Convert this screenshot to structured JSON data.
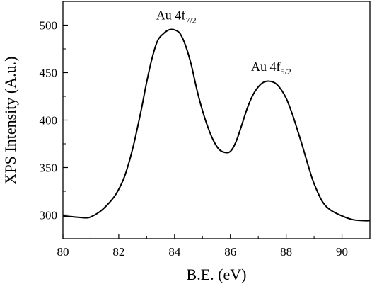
{
  "chart_data": {
    "type": "line",
    "xlabel": "B.E. (eV)",
    "ylabel": "XPS Intensity (A.u.)",
    "xlim": [
      80,
      91
    ],
    "ylim": [
      275,
      525
    ],
    "xticks": [
      "80",
      "82",
      "84",
      "86",
      "88",
      "90"
    ],
    "yticks": [
      "300",
      "350",
      "400",
      "450",
      "500"
    ],
    "grid": false,
    "legend": "none",
    "line_color": "#000000",
    "annotations": [
      {
        "main": "Au 4f",
        "sub": "7/2",
        "x": 84.0,
        "y": 506
      },
      {
        "main": "Au 4f",
        "sub": "5/2",
        "x": 87.4,
        "y": 452
      }
    ],
    "series": [
      {
        "x": [
          80.0,
          80.4,
          80.8,
          81.0,
          81.3,
          81.6,
          81.9,
          82.2,
          82.5,
          82.8,
          83.0,
          83.2,
          83.4,
          83.6,
          83.8,
          84.0,
          84.2,
          84.4,
          84.6,
          84.8,
          85.0,
          85.2,
          85.4,
          85.6,
          85.8,
          86.0,
          86.2,
          86.4,
          86.6,
          86.8,
          87.0,
          87.2,
          87.4,
          87.6,
          87.8,
          88.0,
          88.2,
          88.4,
          88.6,
          88.8,
          89.0,
          89.3,
          89.6,
          90.0,
          90.4,
          90.8,
          91.0
        ],
        "y": [
          299,
          298,
          297,
          298,
          303,
          311,
          322,
          340,
          370,
          410,
          440,
          466,
          484,
          491,
          495,
          495,
          491,
          478,
          458,
          432,
          410,
          392,
          378,
          369,
          366,
          367,
          377,
          394,
          412,
          426,
          435,
          440,
          441,
          439,
          433,
          423,
          408,
          390,
          371,
          351,
          333,
          314,
          305,
          299,
          295,
          294,
          294
        ]
      }
    ]
  }
}
